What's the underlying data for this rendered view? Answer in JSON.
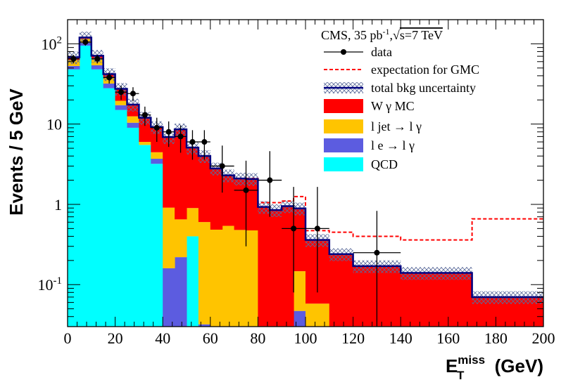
{
  "chart_data": {
    "type": "histogram",
    "title": "",
    "xlabel": "E_T^miss (GeV)",
    "xlabel_main": "E",
    "xlabel_sub": "T",
    "xlabel_sup": "miss",
    "xlabel_unit": "(GeV)",
    "ylabel": "Events / 5 GeV",
    "xlim": [
      0,
      200
    ],
    "ylim": [
      0.03,
      200
    ],
    "yscale": "log",
    "x_ticks": [
      "0",
      "20",
      "40",
      "60",
      "80",
      "100",
      "120",
      "140",
      "160",
      "180",
      "200"
    ],
    "y_ticks": [
      {
        "value": 100,
        "base": "10",
        "exp": "2"
      },
      {
        "value": 10,
        "label": "10"
      },
      {
        "value": 1,
        "label": "1"
      },
      {
        "value": 0.1,
        "base": "10",
        "exp": "-1"
      }
    ],
    "annotation": {
      "prefix": "CMS, 35 pb",
      "exp": "-1",
      "sep": ",",
      "sqrt": "√",
      "energy": "s=7 TeV"
    },
    "legend_position": "top-right",
    "legend": {
      "data": "data",
      "gmc": "expectation for GMC",
      "unc": "total bkg uncertainty",
      "wg": "W γ MC",
      "ljet": "l jet → l γ",
      "le": "l e → l γ",
      "qcd": "QCD"
    },
    "bin_edges": [
      0,
      5,
      10,
      15,
      20,
      25,
      30,
      35,
      40,
      45,
      50,
      55,
      60,
      65,
      70,
      75,
      80,
      85,
      90,
      95,
      100,
      110,
      120,
      140,
      170,
      200
    ],
    "series": [
      {
        "name": "QCD",
        "color": "#00ffff",
        "values": [
          48,
          95,
          48,
          28,
          15,
          9,
          5.5,
          3.2,
          0,
          0,
          0.4,
          0,
          0,
          0,
          0,
          0,
          0,
          0,
          0,
          0,
          0,
          0,
          0,
          0,
          0,
          0
        ]
      },
      {
        "name": "l e → l γ",
        "color": "#5c5ce0",
        "values": [
          5,
          8,
          6,
          4,
          2.2,
          1.4,
          0,
          0.5,
          0.16,
          0.22,
          0,
          0.032,
          0.024,
          0.03,
          0.03,
          0.024,
          0.024,
          0,
          0,
          0.047,
          0,
          0,
          0,
          0,
          0,
          0
        ]
      },
      {
        "name": "l jet → l γ",
        "color": "#ffc400",
        "values": [
          10,
          12,
          12,
          6,
          2.3,
          2.1,
          0.5,
          0.76,
          0.75,
          0.43,
          0.5,
          0.57,
          0.46,
          0.51,
          0.45,
          0.45,
          0,
          0,
          0,
          0.1,
          0.058,
          0,
          0,
          0,
          0,
          0
        ]
      },
      {
        "name": "W γ MC",
        "color": "#ff0000",
        "values": [
          5,
          5,
          5,
          4,
          8,
          5,
          6,
          4.7,
          6,
          8,
          4.2,
          3.4,
          2.3,
          1.76,
          1.64,
          1.6,
          0.91,
          0.85,
          0.95,
          0.74,
          0.3,
          0.24,
          0.17,
          0.14,
          0.07,
          0.07
        ]
      }
    ],
    "total_bkg": [
      68,
      120,
      71,
      42,
      27.5,
      17.5,
      12,
      9.2,
      6.9,
      8.6,
      5.1,
      4,
      2.8,
      2.3,
      2.1,
      2.07,
      0.93,
      0.85,
      0.95,
      0.89,
      0.36,
      0.24,
      0.17,
      0.14,
      0.07,
      0.07
    ],
    "uncertainty_frac": 0.18,
    "gmc_expectation": [
      68,
      120,
      71,
      42,
      27.5,
      17.5,
      12,
      9.2,
      6.9,
      8.6,
      5.1,
      4,
      2.8,
      2.3,
      2.1,
      2.1,
      1.05,
      1.05,
      1.1,
      1.25,
      0.47,
      0.45,
      0.4,
      0.36,
      0.66,
      0.66
    ],
    "data": {
      "x": [
        2.5,
        7.5,
        12.5,
        17.5,
        22.5,
        27.5,
        32.5,
        37.5,
        42.5,
        47.5,
        52.5,
        57.5,
        65,
        75,
        85,
        95,
        105,
        130
      ],
      "y": [
        65,
        105,
        65,
        38,
        25,
        24,
        13,
        9,
        8,
        7,
        6,
        6,
        3,
        1.5,
        2,
        0.5,
        0.5,
        0.25
      ],
      "xerr": [
        2.5,
        2.5,
        2.5,
        2.5,
        2.5,
        2.5,
        2.5,
        2.5,
        2.5,
        2.5,
        2.5,
        2.5,
        5,
        5,
        5,
        5,
        5,
        10
      ],
      "yerr_low": [
        8,
        10,
        8,
        6,
        5,
        4.8,
        3.5,
        3,
        2.8,
        2.6,
        2.4,
        2.4,
        1.6,
        1.2,
        1.3,
        0.42,
        0.42,
        0.22
      ],
      "yerr_high": [
        8,
        10,
        8,
        6,
        5,
        4.8,
        3.5,
        3,
        2.8,
        2.6,
        2.4,
        2.4,
        2.4,
        2.0,
        2.6,
        1.15,
        1.15,
        0.58
      ]
    }
  }
}
